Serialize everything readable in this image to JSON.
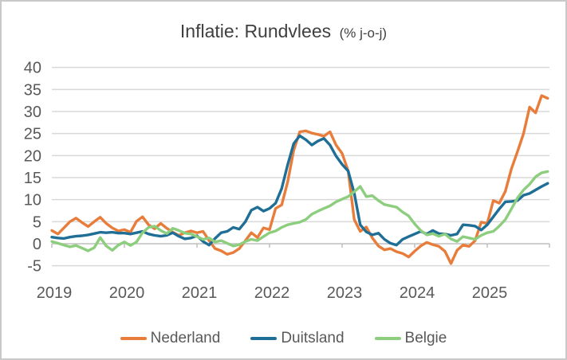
{
  "chart_data": {
    "type": "line",
    "title": "Inflatie: Rundvlees",
    "title_suffix": "(% j-o-j)",
    "x_unit": "month",
    "x_start": "2019-01",
    "x_end": "2025-11",
    "xticks": [
      "2019",
      "2020",
      "2021",
      "2022",
      "2023",
      "2024",
      "2025"
    ],
    "yticks": [
      40,
      35,
      30,
      25,
      20,
      15,
      10,
      5,
      0,
      -5
    ],
    "ylim": [
      -5,
      40
    ],
    "grid": "horizontal",
    "grid_color": "#d9d9d9",
    "axis_color": "#bfbfbf",
    "text_color": "#595959",
    "title_color": "#404040",
    "legend_position": "bottom",
    "series": [
      {
        "name": "Nederland",
        "color": "#e87d3b",
        "values": [
          3.0,
          2.2,
          3.6,
          5.0,
          5.8,
          4.8,
          3.9,
          5.0,
          6.0,
          4.6,
          3.6,
          2.9,
          3.2,
          2.6,
          5.1,
          6.1,
          4.3,
          3.4,
          4.6,
          3.5,
          2.6,
          1.9,
          2.5,
          2.9,
          2.5,
          2.8,
          0.7,
          -1.1,
          -1.6,
          -2.4,
          -2.0,
          -1.1,
          0.7,
          2.5,
          1.4,
          3.6,
          3.2,
          8.0,
          8.8,
          14.0,
          21.2,
          25.4,
          25.6,
          25.1,
          24.8,
          24.4,
          25.4,
          22.4,
          20.5,
          16.5,
          5.5,
          2.8,
          3.8,
          1.3,
          -0.5,
          -1.4,
          -1.1,
          -1.8,
          -2.2,
          -3.0,
          -1.7,
          -0.5,
          0.3,
          -0.2,
          -0.6,
          -1.7,
          -4.5,
          -1.5,
          -0.3,
          -0.6,
          0.7,
          4.9,
          4.6,
          9.8,
          9.2,
          11.9,
          17.0,
          20.9,
          25.0,
          31.0,
          29.7,
          33.6,
          33.0
        ]
      },
      {
        "name": "Duitsland",
        "color": "#1f6e96",
        "values": [
          1.5,
          1.3,
          1.2,
          1.5,
          1.7,
          1.8,
          2.0,
          2.3,
          2.6,
          2.5,
          2.6,
          2.4,
          2.4,
          2.2,
          2.5,
          2.8,
          2.2,
          1.9,
          1.7,
          1.9,
          2.5,
          1.7,
          1.1,
          1.3,
          1.8,
          0.5,
          -0.3,
          1.2,
          2.5,
          2.8,
          3.7,
          3.3,
          5.0,
          7.6,
          8.3,
          7.4,
          8.0,
          9.2,
          12.5,
          17.9,
          22.7,
          24.5,
          23.6,
          22.4,
          23.3,
          23.9,
          22.4,
          19.9,
          18.0,
          16.5,
          11.5,
          4.3,
          2.7,
          2.0,
          2.4,
          1.0,
          0.1,
          -0.3,
          1.0,
          1.6,
          2.2,
          2.8,
          2.2,
          3.0,
          2.3,
          2.2,
          1.9,
          2.2,
          4.3,
          4.2,
          4.0,
          3.1,
          4.3,
          6.1,
          7.9,
          9.5,
          9.6,
          9.8,
          11.0,
          11.4,
          12.2,
          13.0,
          13.7
        ]
      },
      {
        "name": "Belgie",
        "color": "#8cce7d",
        "values": [
          0.5,
          0.1,
          -0.3,
          -0.7,
          -0.4,
          -1.0,
          -1.6,
          -0.9,
          1.4,
          -0.5,
          -1.5,
          -0.3,
          0.4,
          -0.4,
          0.4,
          2.5,
          3.7,
          4.0,
          3.0,
          2.3,
          3.5,
          3.0,
          2.4,
          2.2,
          1.6,
          1.0,
          1.3,
          0.4,
          0.7,
          0.1,
          -0.5,
          -0.2,
          0.5,
          1.0,
          0.7,
          1.6,
          2.5,
          2.9,
          3.7,
          4.3,
          4.6,
          4.9,
          5.5,
          6.7,
          7.4,
          8.0,
          8.6,
          9.5,
          10.1,
          10.7,
          11.8,
          13.0,
          10.7,
          10.9,
          9.8,
          8.9,
          8.6,
          8.3,
          7.2,
          6.3,
          4.5,
          3.0,
          2.0,
          2.3,
          1.7,
          2.2,
          1.1,
          0.5,
          1.6,
          1.3,
          1.0,
          1.9,
          2.5,
          2.8,
          4.0,
          5.5,
          7.9,
          10.4,
          12.2,
          13.5,
          15.2,
          16.1,
          16.4
        ]
      }
    ]
  }
}
